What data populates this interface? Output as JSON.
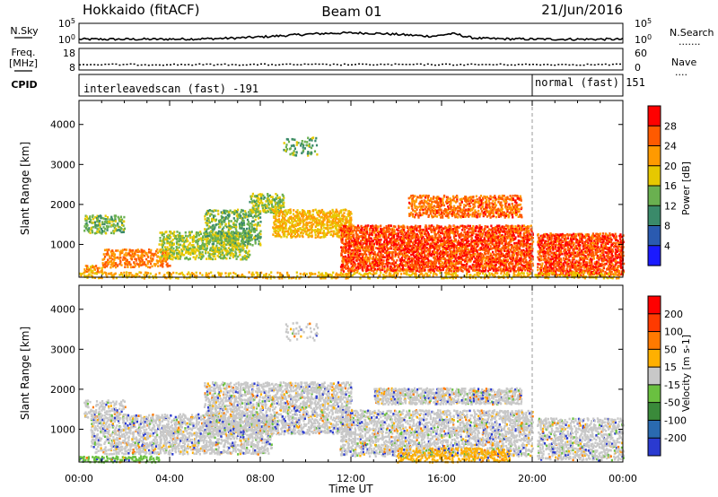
{
  "header": {
    "station": "Hokkaido (fitACF)",
    "beam": "Beam 01",
    "date": "21/Jun/2016"
  },
  "left_labels": {
    "nsky": "N.Sky",
    "freq_line1": "Freq.",
    "freq_line2": "[MHz]",
    "cpid": "CPID"
  },
  "right_labels": {
    "nsearch": "N.Search",
    "nsearch_dots": ".......",
    "nave": "Nave",
    "nave_dots": "...."
  },
  "noise_axis": {
    "top": "10^5",
    "bottom": "10^0",
    "top_right": "10^5",
    "bottom_right": "10^0"
  },
  "freq_axis": {
    "top": "18",
    "bottom": "8"
  },
  "nave_axis": {
    "top": "60",
    "bottom": "0"
  },
  "cpid": {
    "left_text": "interleavedscan (fast) -191",
    "right_text": "normal (fast) 151",
    "switch_time_h": 20
  },
  "x_axis": {
    "label": "Time UT",
    "ticks": [
      "00:00",
      "04:00",
      "08:00",
      "12:00",
      "16:00",
      "20:00",
      "00:00"
    ],
    "range_h": [
      0,
      24
    ]
  },
  "chart_data": [
    {
      "type": "heatmap",
      "title": "",
      "xlabel": "Time UT",
      "ylabel": "Slant Range [km]",
      "xlim_h": [
        0,
        24
      ],
      "ylim_km": [
        180,
        4600
      ],
      "yticks": [
        "1000",
        "2000",
        "3000",
        "4000"
      ],
      "colorbar": {
        "label": "Power [dB]",
        "ticks": [
          "4",
          "8",
          "12",
          "16",
          "20",
          "24",
          "28"
        ],
        "range": [
          0,
          32
        ],
        "colors": [
          "#1a1aff",
          "#2a5ab0",
          "#3a8a6a",
          "#6ab050",
          "#e6c800",
          "#ff9a00",
          "#ff5a00",
          "#ff0000"
        ]
      },
      "bands": [
        {
          "t0": 0.2,
          "t1": 2.0,
          "r0": 1300,
          "r1": 1750,
          "density": 0.55,
          "level": 14
        },
        {
          "t0": 0.2,
          "t1": 1.0,
          "r0": 300,
          "r1": 500,
          "density": 0.6,
          "level": 22
        },
        {
          "t0": 1.0,
          "t1": 4.0,
          "r0": 450,
          "r1": 900,
          "density": 0.6,
          "level": 24
        },
        {
          "t0": 3.5,
          "t1": 7.5,
          "r0": 650,
          "r1": 1350,
          "density": 0.55,
          "level": 16
        },
        {
          "t0": 5.5,
          "t1": 8.0,
          "r0": 1000,
          "r1": 1900,
          "density": 0.45,
          "level": 14
        },
        {
          "t0": 7.5,
          "t1": 9.0,
          "r0": 1800,
          "r1": 2300,
          "density": 0.6,
          "level": 15
        },
        {
          "t0": 8.5,
          "t1": 12.0,
          "r0": 1200,
          "r1": 1900,
          "density": 0.6,
          "level": 20
        },
        {
          "t0": 11.5,
          "t1": 20.0,
          "r0": 350,
          "r1": 1500,
          "density": 0.75,
          "level": 27
        },
        {
          "t0": 14.5,
          "t1": 19.5,
          "r0": 1700,
          "r1": 2250,
          "density": 0.6,
          "level": 25
        },
        {
          "t0": 20.2,
          "t1": 24.0,
          "r0": 250,
          "r1": 1300,
          "density": 0.75,
          "level": 27
        },
        {
          "t0": 9.0,
          "t1": 10.5,
          "r0": 3250,
          "r1": 3700,
          "density": 0.3,
          "level": 13
        },
        {
          "t0": 0.0,
          "t1": 24.0,
          "r0": 180,
          "r1": 330,
          "density": 0.4,
          "level": 20
        }
      ]
    },
    {
      "type": "heatmap",
      "title": "",
      "xlabel": "Time UT",
      "ylabel": "Slant Range [km]",
      "xlim_h": [
        0,
        24
      ],
      "ylim_km": [
        180,
        4600
      ],
      "yticks": [
        "1000",
        "2000",
        "3000",
        "4000"
      ],
      "colorbar": {
        "label": "Velocity [m s-1]",
        "ticks": [
          "200",
          "100",
          "50",
          "15",
          "-15",
          "-50",
          "-100",
          "-200"
        ],
        "colors": [
          "#2a3ad0",
          "#2a6ab0",
          "#3a8a3a",
          "#6ac040",
          "#c8c8c8",
          "#ffb000",
          "#ff7a00",
          "#ff3a00",
          "#ff0000"
        ]
      },
      "bands": [
        {
          "t0": 0.2,
          "t1": 2.0,
          "r0": 1300,
          "r1": 1750,
          "density": 0.4,
          "level": 4
        },
        {
          "t0": 0.5,
          "t1": 8.5,
          "r0": 400,
          "r1": 1400,
          "density": 0.55,
          "level": 4
        },
        {
          "t0": 5.5,
          "t1": 12.0,
          "r0": 900,
          "r1": 2200,
          "density": 0.55,
          "level": 4
        },
        {
          "t0": 11.5,
          "t1": 20.0,
          "r0": 350,
          "r1": 1500,
          "density": 0.55,
          "level": 4
        },
        {
          "t0": 13.0,
          "t1": 19.5,
          "r0": 1650,
          "r1": 2050,
          "density": 0.75,
          "level": 4
        },
        {
          "t0": 20.2,
          "t1": 24.0,
          "r0": 250,
          "r1": 1300,
          "density": 0.55,
          "level": 4
        },
        {
          "t0": 14.0,
          "t1": 19.0,
          "r0": 200,
          "r1": 550,
          "density": 0.45,
          "level": 5
        },
        {
          "t0": 0.0,
          "t1": 3.5,
          "r0": 200,
          "r1": 350,
          "density": 0.5,
          "level": 3
        },
        {
          "t0": 9.0,
          "t1": 10.5,
          "r0": 3250,
          "r1": 3700,
          "density": 0.2,
          "level": 4
        }
      ]
    }
  ]
}
